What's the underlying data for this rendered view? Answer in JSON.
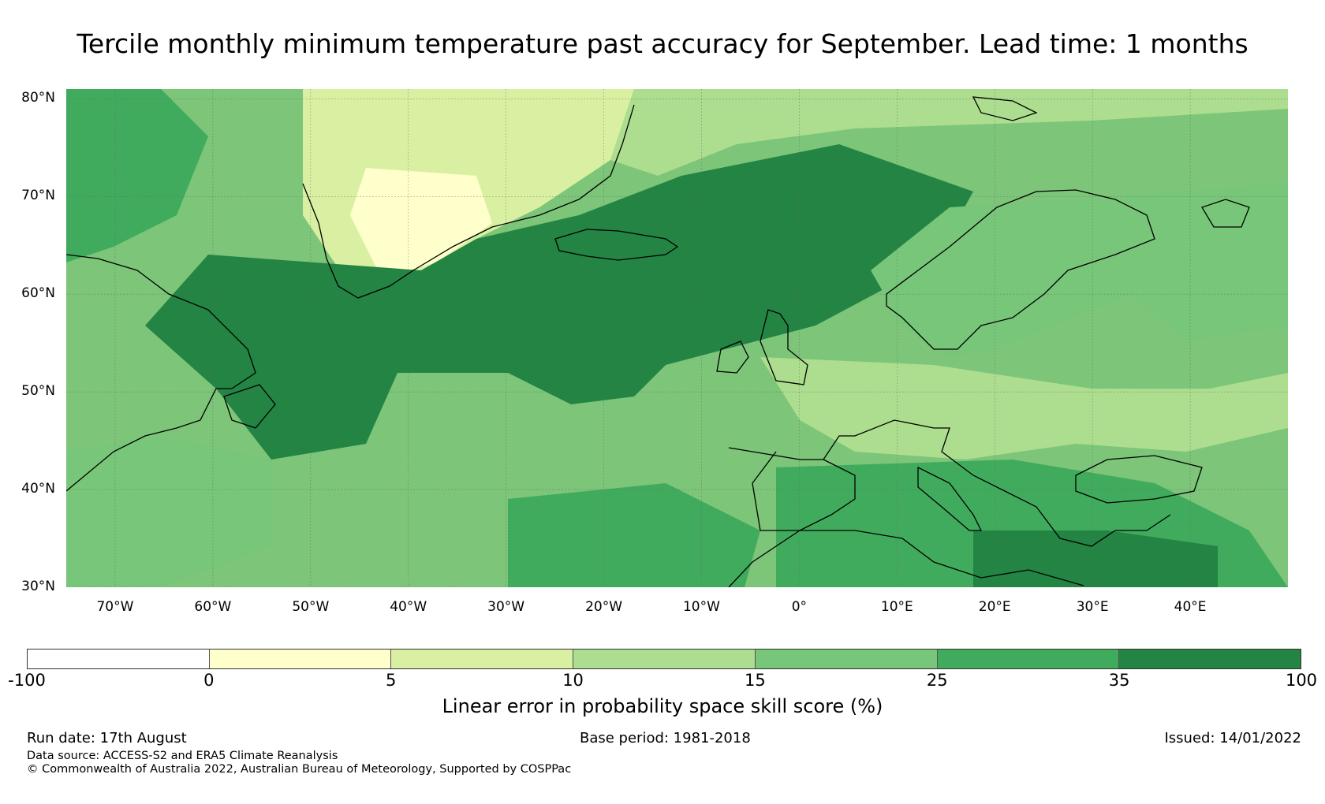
{
  "title": "Tercile monthly minimum temperature past accuracy for September. Lead time: 1 months",
  "map": {
    "lat_labels": [
      "80°N",
      "70°N",
      "60°N",
      "50°N",
      "40°N",
      "30°N"
    ],
    "lon_labels": [
      "70°W",
      "60°W",
      "50°W",
      "40°W",
      "30°W",
      "20°W",
      "10°W",
      "0°",
      "10°E",
      "20°E",
      "30°E",
      "40°E"
    ],
    "lat_range": [
      30,
      81
    ],
    "lon_range": [
      -75,
      50
    ]
  },
  "colorbar": {
    "ticks": [
      "-100",
      "0",
      "5",
      "10",
      "15",
      "25",
      "35",
      "100"
    ],
    "colors": [
      "#ffffff",
      "#ffffcc",
      "#d9f0a3",
      "#addd8e",
      "#78c679",
      "#41ab5d",
      "#238443"
    ],
    "label": "Linear error in probability space skill score (%)"
  },
  "footer": {
    "run_date": "Run date: 17th August",
    "base_period": "Base period: 1981-2018",
    "issued": "Issued: 14/01/2022",
    "data_source": "Data source: ACCESS-S2 and ERA5 Climate Reanalysis",
    "copyright": "© Commonwealth of Australia 2022, Australian Bureau of Meteorology, Supported by COSPPac"
  }
}
